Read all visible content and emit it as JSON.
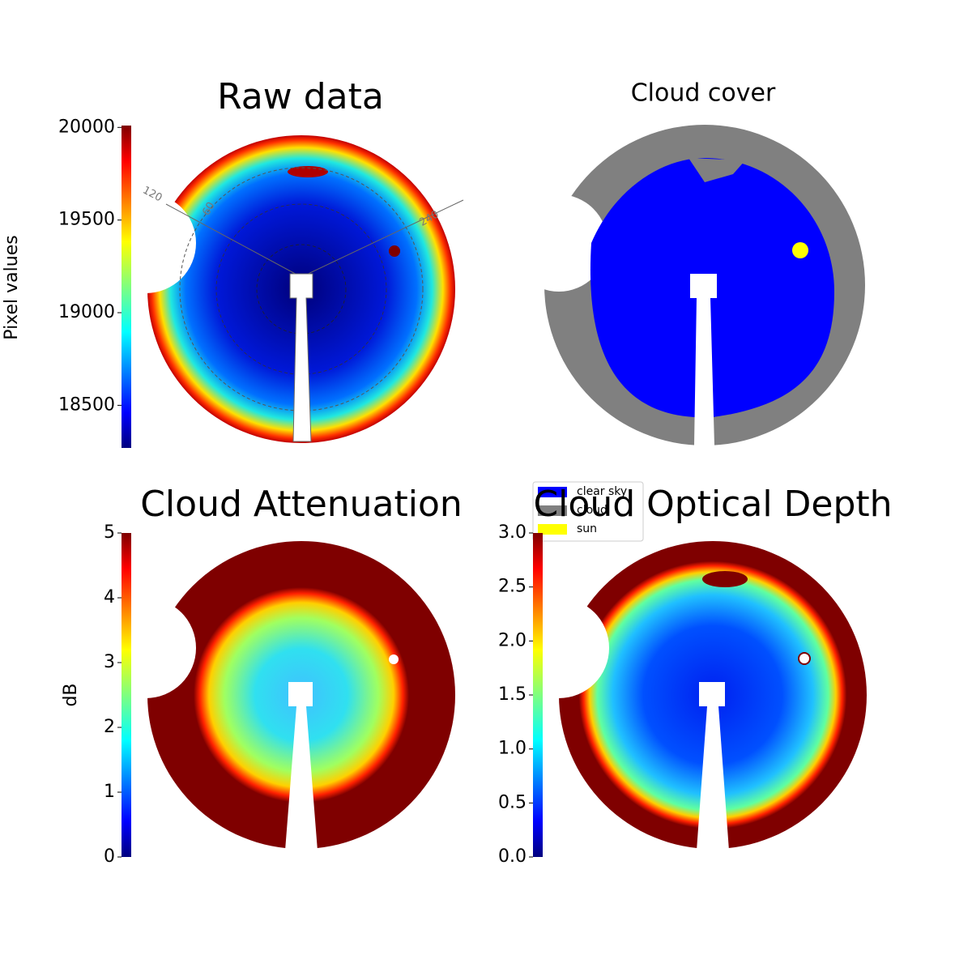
{
  "chart_data": [
    {
      "type": "image",
      "title": "Raw data",
      "colorbar_label": "Pixel values",
      "cmap": "jet",
      "ylim": [
        18270,
        20010
      ],
      "yticks": [
        18500,
        19000,
        19500,
        20000
      ],
      "annotations": [
        "120",
        "60",
        "240"
      ]
    },
    {
      "type": "image",
      "title": "Cloud cover",
      "legend": [
        {
          "name": "clear sky",
          "color": "#0000ff"
        },
        {
          "name": "cloud",
          "color": "#808080"
        },
        {
          "name": "sun",
          "color": "#ffff00"
        }
      ]
    },
    {
      "type": "image",
      "title": "Cloud Attenuation",
      "colorbar_label": "dB",
      "cmap": "jet",
      "ylim": [
        0,
        5
      ],
      "yticks": [
        0,
        1,
        2,
        3,
        4,
        5
      ]
    },
    {
      "type": "image",
      "title": "Cloud Optical Depth",
      "cmap": "jet",
      "ylim": [
        0,
        3
      ],
      "yticks": [
        {
          "value": 0,
          "label": "0.0"
        },
        {
          "value": 0.5,
          "label": "0.5"
        },
        {
          "value": 1,
          "label": "1.0"
        },
        {
          "value": 1.5,
          "label": "1.5"
        },
        {
          "value": 2,
          "label": "2.0"
        },
        {
          "value": 2.5,
          "label": "2.5"
        },
        {
          "value": 3,
          "label": "3.0"
        }
      ]
    }
  ]
}
